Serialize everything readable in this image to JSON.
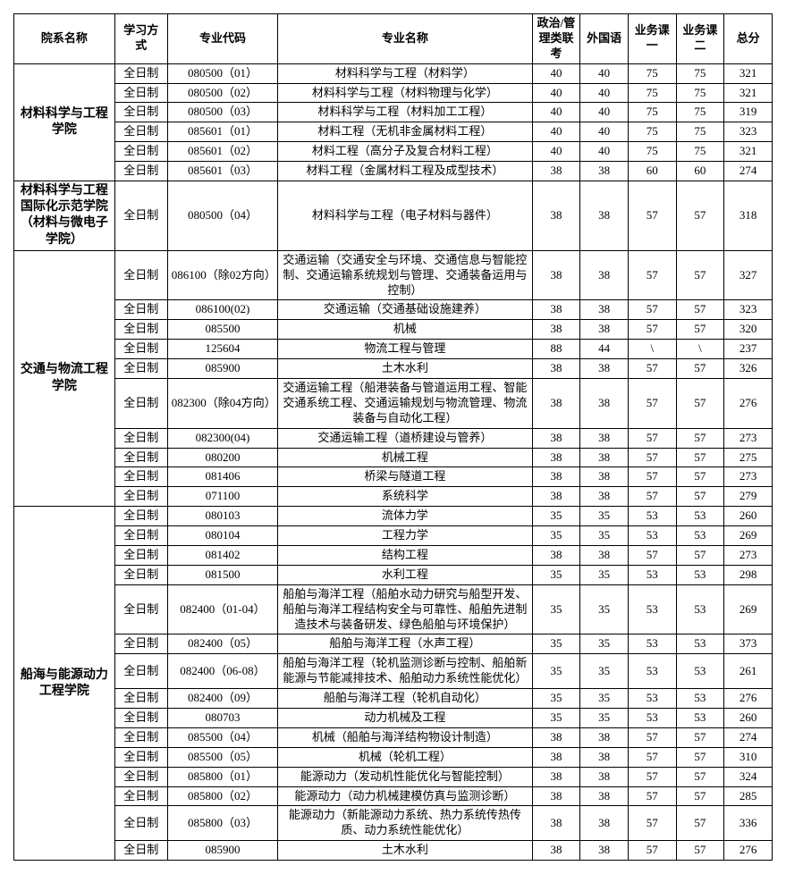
{
  "headers": {
    "dept": "院系名称",
    "mode": "学习方式",
    "code": "专业代码",
    "major": "专业名称",
    "politics": "政治/管理类联考",
    "foreign": "外国语",
    "course1": "业务课一",
    "course2": "业务课二",
    "total": "总分"
  },
  "depts": [
    {
      "name": "材料科学与工程学院",
      "rows": [
        {
          "mode": "全日制",
          "code": "080500（01）",
          "major": "材料科学与工程（材料学）",
          "s": [
            "40",
            "40",
            "75",
            "75",
            "321"
          ]
        },
        {
          "mode": "全日制",
          "code": "080500（02）",
          "major": "材料科学与工程（材料物理与化学）",
          "s": [
            "40",
            "40",
            "75",
            "75",
            "321"
          ]
        },
        {
          "mode": "全日制",
          "code": "080500（03）",
          "major": "材料科学与工程（材料加工工程）",
          "s": [
            "40",
            "40",
            "75",
            "75",
            "319"
          ]
        },
        {
          "mode": "全日制",
          "code": "085601（01）",
          "major": "材料工程（无机非金属材料工程）",
          "s": [
            "40",
            "40",
            "75",
            "75",
            "323"
          ]
        },
        {
          "mode": "全日制",
          "code": "085601（02）",
          "major": "材料工程（高分子及复合材料工程）",
          "s": [
            "40",
            "40",
            "75",
            "75",
            "321"
          ]
        },
        {
          "mode": "全日制",
          "code": "085601（03）",
          "major": "材料工程（金属材料工程及成型技术）",
          "s": [
            "38",
            "38",
            "60",
            "60",
            "274"
          ]
        }
      ]
    },
    {
      "name": "材料科学与工程国际化示范学院（材料与微电子学院）",
      "rows": [
        {
          "mode": "全日制",
          "code": "080500（04）",
          "major": "材料科学与工程（电子材料与器件）",
          "s": [
            "38",
            "38",
            "57",
            "57",
            "318"
          ]
        }
      ]
    },
    {
      "name": "交通与物流工程学院",
      "rows": [
        {
          "mode": "全日制",
          "code": "086100（除02方向）",
          "major": "交通运输（交通安全与环境、交通信息与智能控制、交通运输系统规划与管理、交通装备运用与控制）",
          "s": [
            "38",
            "38",
            "57",
            "57",
            "327"
          ]
        },
        {
          "mode": "全日制",
          "code": "086100(02)",
          "major": "交通运输（交通基础设施建养）",
          "s": [
            "38",
            "38",
            "57",
            "57",
            "323"
          ]
        },
        {
          "mode": "全日制",
          "code": "085500",
          "major": "机械",
          "s": [
            "38",
            "38",
            "57",
            "57",
            "320"
          ]
        },
        {
          "mode": "全日制",
          "code": "125604",
          "major": "物流工程与管理",
          "s": [
            "88",
            "44",
            "\\",
            "\\",
            "237"
          ]
        },
        {
          "mode": "全日制",
          "code": "085900",
          "major": "土木水利",
          "s": [
            "38",
            "38",
            "57",
            "57",
            "326"
          ]
        },
        {
          "mode": "全日制",
          "code": "082300（除04方向）",
          "major": "交通运输工程（船港装备与管道运用工程、智能交通系统工程、交通运输规划与物流管理、物流装备与自动化工程）",
          "s": [
            "38",
            "38",
            "57",
            "57",
            "276"
          ]
        },
        {
          "mode": "全日制",
          "code": "082300(04)",
          "major": "交通运输工程（道桥建设与管养）",
          "s": [
            "38",
            "38",
            "57",
            "57",
            "273"
          ]
        },
        {
          "mode": "全日制",
          "code": "080200",
          "major": "机械工程",
          "s": [
            "38",
            "38",
            "57",
            "57",
            "275"
          ]
        },
        {
          "mode": "全日制",
          "code": "081406",
          "major": "桥梁与隧道工程",
          "s": [
            "38",
            "38",
            "57",
            "57",
            "273"
          ]
        },
        {
          "mode": "全日制",
          "code": "071100",
          "major": "系统科学",
          "s": [
            "38",
            "38",
            "57",
            "57",
            "279"
          ]
        }
      ]
    },
    {
      "name": "船海与能源动力工程学院",
      "rows": [
        {
          "mode": "全日制",
          "code": "080103",
          "major": "流体力学",
          "s": [
            "35",
            "35",
            "53",
            "53",
            "260"
          ]
        },
        {
          "mode": "全日制",
          "code": "080104",
          "major": "工程力学",
          "s": [
            "35",
            "35",
            "53",
            "53",
            "269"
          ]
        },
        {
          "mode": "全日制",
          "code": "081402",
          "major": "结构工程",
          "s": [
            "38",
            "38",
            "57",
            "57",
            "273"
          ]
        },
        {
          "mode": "全日制",
          "code": "081500",
          "major": "水利工程",
          "s": [
            "35",
            "35",
            "53",
            "53",
            "298"
          ]
        },
        {
          "mode": "全日制",
          "code": "082400（01-04）",
          "major": "船舶与海洋工程（船舶水动力研究与船型开发、船舶与海洋工程结构安全与可靠性、船舶先进制造技术与装备研发、绿色船舶与环境保护）",
          "s": [
            "35",
            "35",
            "53",
            "53",
            "269"
          ]
        },
        {
          "mode": "全日制",
          "code": "082400（05）",
          "major": "船舶与海洋工程（水声工程）",
          "s": [
            "35",
            "35",
            "53",
            "53",
            "373"
          ]
        },
        {
          "mode": "全日制",
          "code": "082400（06-08）",
          "major": "船舶与海洋工程（轮机监测诊断与控制、船舶新能源与节能减排技术、船舶动力系统性能优化）",
          "s": [
            "35",
            "35",
            "53",
            "53",
            "261"
          ]
        },
        {
          "mode": "全日制",
          "code": "082400（09）",
          "major": "船舶与海洋工程（轮机自动化）",
          "s": [
            "35",
            "35",
            "53",
            "53",
            "276"
          ]
        },
        {
          "mode": "全日制",
          "code": "080703",
          "major": "动力机械及工程",
          "s": [
            "35",
            "35",
            "53",
            "53",
            "260"
          ]
        },
        {
          "mode": "全日制",
          "code": "085500（04）",
          "major": "机械（船舶与海洋结构物设计制造）",
          "s": [
            "38",
            "38",
            "57",
            "57",
            "274"
          ]
        },
        {
          "mode": "全日制",
          "code": "085500（05）",
          "major": "机械（轮机工程）",
          "s": [
            "38",
            "38",
            "57",
            "57",
            "310"
          ]
        },
        {
          "mode": "全日制",
          "code": "085800（01）",
          "major": "能源动力（发动机性能优化与智能控制）",
          "s": [
            "38",
            "38",
            "57",
            "57",
            "324"
          ]
        },
        {
          "mode": "全日制",
          "code": "085800（02）",
          "major": "能源动力（动力机械建模仿真与监测诊断）",
          "s": [
            "38",
            "38",
            "57",
            "57",
            "285"
          ]
        },
        {
          "mode": "全日制",
          "code": "085800（03）",
          "major": "能源动力（新能源动力系统、热力系统传热传质、动力系统性能优化）",
          "s": [
            "38",
            "38",
            "57",
            "57",
            "336"
          ]
        },
        {
          "mode": "全日制",
          "code": "085900",
          "major": "土木水利",
          "s": [
            "38",
            "38",
            "57",
            "57",
            "276"
          ]
        }
      ]
    }
  ]
}
